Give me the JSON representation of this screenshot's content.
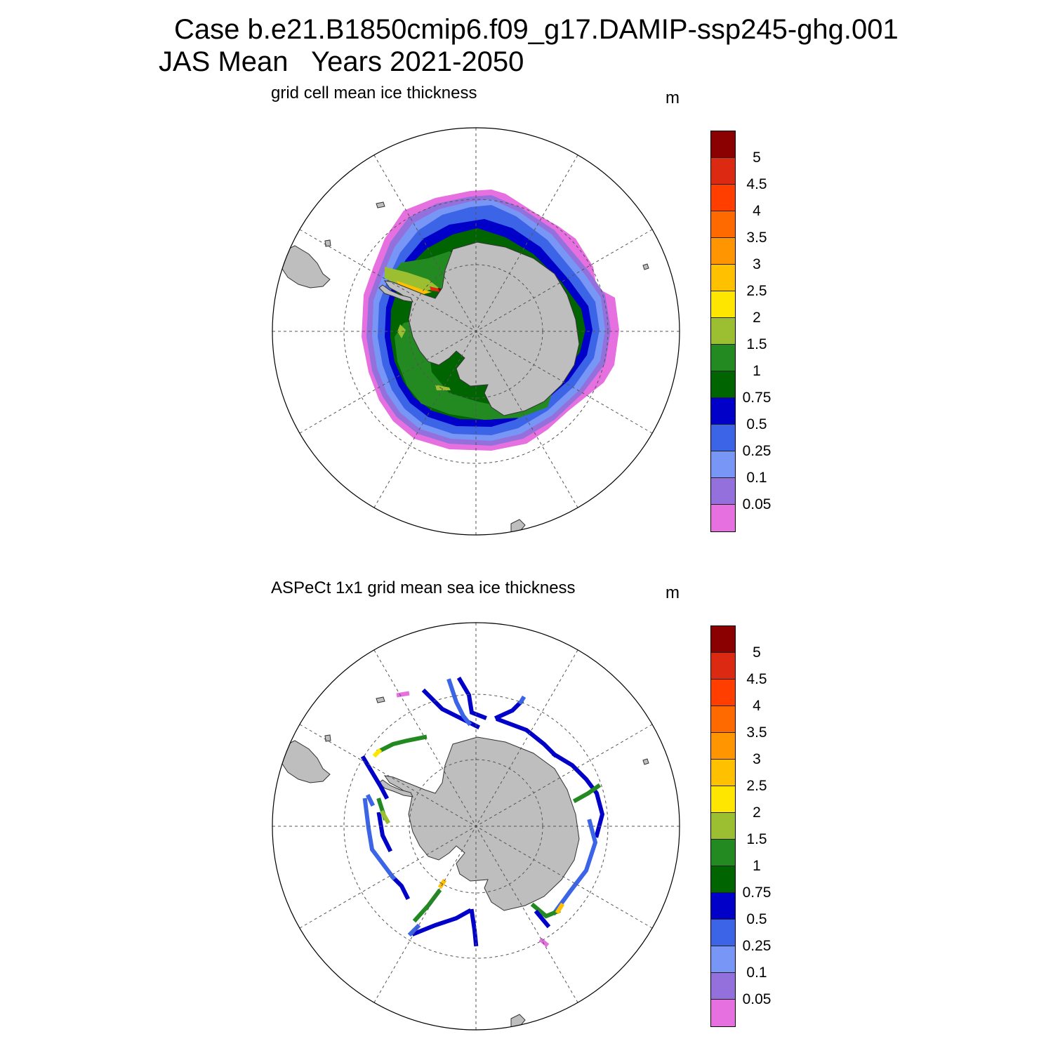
{
  "title_line1": "Case b.e21.B1850cmip6.f09_g17.DAMIP-ssp245-ghg.001",
  "title_line2": "JAS Mean   Years 2021-2050",
  "panels": [
    {
      "subtitle": "grid cell mean ice thickness",
      "unit": "m"
    },
    {
      "subtitle": "ASPeCt 1x1 grid mean sea ice thickness",
      "unit": "m"
    }
  ],
  "colorbar": {
    "labels": [
      "5",
      "4.5",
      "4",
      "3.5",
      "3",
      "2.5",
      "2",
      "1.5",
      "1",
      "0.75",
      "0.5",
      "0.25",
      "0.1",
      "0.05"
    ],
    "colors": [
      "#8b0000",
      "#dc2a12",
      "#ff3e00",
      "#ff6a00",
      "#ff9500",
      "#ffc000",
      "#ffe600",
      "#9bbf30",
      "#238a22",
      "#006400",
      "#0000c8",
      "#3c64e6",
      "#7896f5",
      "#9370db",
      "#e670e0"
    ]
  },
  "map_colors": {
    "land": "#bebebe",
    "ocean": "#ffffff",
    "grid": "#555555"
  }
}
